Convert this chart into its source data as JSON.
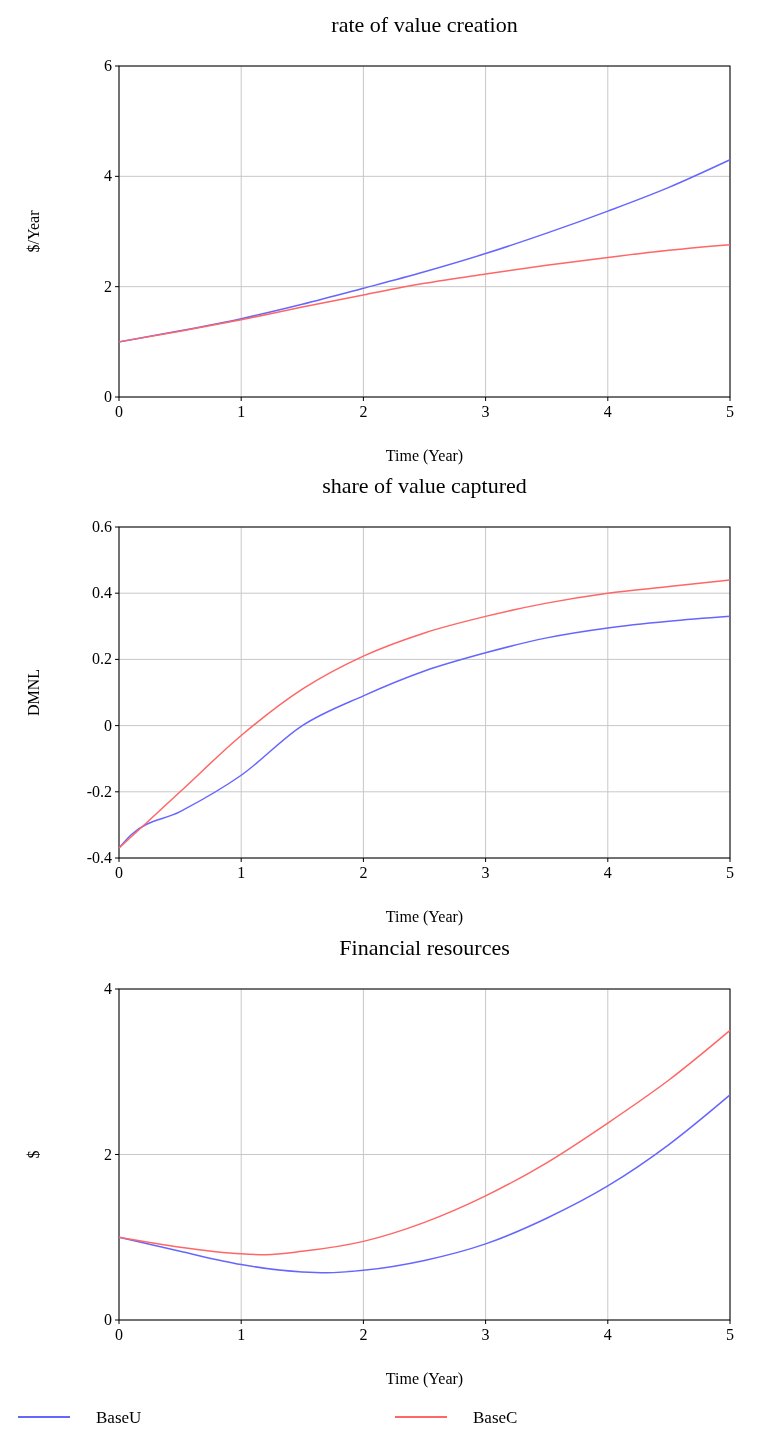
{
  "chart_data": [
    {
      "type": "line",
      "title": "rate of value creation",
      "xlabel": "Time (Year)",
      "ylabel": "$/Year",
      "xlim": [
        0,
        5
      ],
      "xticks": [
        0,
        1,
        2,
        3,
        4,
        5
      ],
      "ylim": [
        0,
        6
      ],
      "yticks": [
        0,
        2,
        4,
        6
      ],
      "grid": true,
      "series": [
        {
          "color": "#6666ff",
          "x": [
            0,
            0.5,
            1,
            1.5,
            2,
            2.5,
            3,
            3.5,
            4,
            4.5,
            5
          ],
          "values": [
            1.0,
            1.2,
            1.42,
            1.68,
            1.97,
            2.27,
            2.6,
            2.97,
            3.37,
            3.8,
            4.3
          ]
        },
        {
          "color": "#ff6666",
          "x": [
            0,
            0.5,
            1,
            1.5,
            2,
            2.5,
            3,
            3.5,
            4,
            4.5,
            5
          ],
          "values": [
            1.0,
            1.19,
            1.4,
            1.63,
            1.85,
            2.06,
            2.23,
            2.39,
            2.53,
            2.66,
            2.76
          ]
        }
      ]
    },
    {
      "type": "line",
      "title": "share of value captured",
      "xlabel": "Time (Year)",
      "ylabel": "DMNL",
      "xlim": [
        0,
        5
      ],
      "xticks": [
        0,
        1,
        2,
        3,
        4,
        5
      ],
      "ylim": [
        -0.4,
        0.6
      ],
      "yticks": [
        -0.4,
        -0.2,
        0,
        0.2,
        0.4,
        0.6
      ],
      "grid": true,
      "series": [
        {
          "color": "#6666ff",
          "x": [
            0,
            0.1,
            0.5,
            1,
            1.5,
            2,
            2.5,
            3,
            3.5,
            4,
            4.5,
            5
          ],
          "values": [
            -0.37,
            -0.33,
            -0.26,
            -0.15,
            0.0,
            0.09,
            0.165,
            0.22,
            0.265,
            0.295,
            0.315,
            0.33
          ]
        },
        {
          "color": "#ff6666",
          "x": [
            0,
            0.5,
            1,
            1.5,
            2,
            2.5,
            3,
            3.5,
            4,
            4.5,
            5
          ],
          "values": [
            -0.37,
            -0.2,
            -0.03,
            0.11,
            0.21,
            0.28,
            0.33,
            0.37,
            0.4,
            0.42,
            0.44
          ]
        }
      ]
    },
    {
      "type": "line",
      "title": "Financial resources",
      "xlabel": "Time (Year)",
      "ylabel": "$",
      "xlim": [
        0,
        5
      ],
      "xticks": [
        0,
        1,
        2,
        3,
        4,
        5
      ],
      "ylim": [
        0,
        4
      ],
      "yticks": [
        0,
        2,
        4
      ],
      "grid": true,
      "legend": "bottom",
      "series": [
        {
          "name": "BaseU",
          "color": "#6666ff",
          "x": [
            0,
            0.5,
            1,
            1.5,
            1.7,
            2,
            2.5,
            3,
            3.5,
            4,
            4.5,
            5
          ],
          "values": [
            1.0,
            0.83,
            0.67,
            0.58,
            0.57,
            0.6,
            0.72,
            0.92,
            1.23,
            1.62,
            2.12,
            2.72
          ]
        },
        {
          "name": "BaseC",
          "color": "#ff6666",
          "x": [
            0,
            0.5,
            1,
            1.2,
            1.5,
            2,
            2.5,
            3,
            3.5,
            4,
            4.5,
            5
          ],
          "values": [
            1.0,
            0.88,
            0.8,
            0.79,
            0.83,
            0.95,
            1.18,
            1.5,
            1.9,
            2.38,
            2.9,
            3.5
          ]
        }
      ]
    }
  ]
}
